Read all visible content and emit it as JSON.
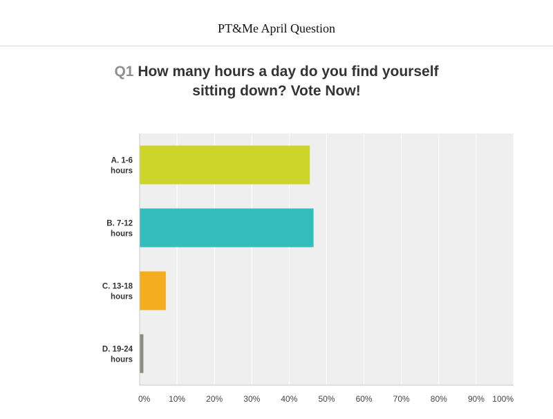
{
  "header": {
    "title": "PT&Me April Question"
  },
  "question": {
    "number": "Q1",
    "text": "How many hours a day do you find yourself sitting down? Vote Now!"
  },
  "colors": {
    "plot_background": "#efefef",
    "gridline": "#ffffff",
    "axis": "#c8c8c8"
  },
  "chart_data": {
    "type": "bar",
    "orientation": "horizontal",
    "categories": [
      [
        "A. 1-6",
        "hours"
      ],
      [
        "B. 7-12",
        "hours"
      ],
      [
        "C. 13-18",
        "hours"
      ],
      [
        "D. 19-24",
        "hours"
      ]
    ],
    "values": [
      45.5,
      46.5,
      7,
      1
    ],
    "colors": [
      "#cdd42a",
      "#33bdbd",
      "#f5ad20",
      "#8b8c7e"
    ],
    "xlim": [
      0,
      100
    ],
    "xticks": [
      "0%",
      "10%",
      "20%",
      "30%",
      "40%",
      "50%",
      "60%",
      "70%",
      "80%",
      "90%",
      "100%"
    ],
    "grid": true,
    "title": "",
    "xlabel": "",
    "ylabel": ""
  }
}
